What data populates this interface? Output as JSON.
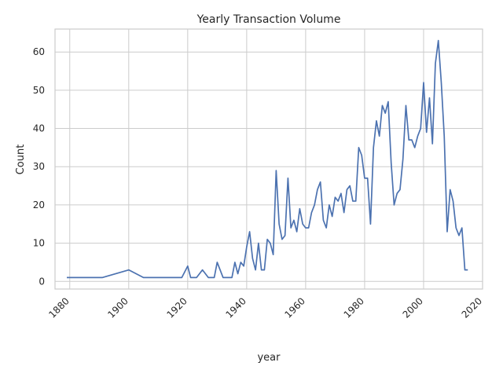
{
  "chart_data": {
    "type": "line",
    "title": "Yearly Transaction Volume",
    "xlabel": "year",
    "ylabel": "Count",
    "xlim": [
      1875,
      2020
    ],
    "ylim": [
      -2,
      66
    ],
    "xticks": [
      1880,
      1900,
      1920,
      1940,
      1960,
      1980,
      2000,
      2020
    ],
    "yticks": [
      0,
      10,
      20,
      30,
      40,
      50,
      60
    ],
    "grid": true,
    "legend": "none",
    "line_color": "#4c72b0",
    "grid_color": "#cccccc",
    "series": [
      {
        "x": [
          1879,
          1891,
          1900,
          1905,
          1918,
          1920,
          1921,
          1923,
          1925,
          1927,
          1929,
          1930,
          1932,
          1935,
          1936,
          1937,
          1938,
          1939,
          1940,
          1941,
          1942,
          1943,
          1944,
          1945,
          1946,
          1947,
          1948,
          1949,
          1950,
          1951,
          1952,
          1953,
          1954,
          1955,
          1956,
          1957,
          1958,
          1959,
          1960,
          1961,
          1962,
          1963,
          1964,
          1965,
          1966,
          1967,
          1968,
          1969,
          1970,
          1971,
          1972,
          1973,
          1974,
          1975,
          1976,
          1977,
          1978,
          1979,
          1980,
          1981,
          1982,
          1983,
          1984,
          1985,
          1986,
          1987,
          1988,
          1989,
          1990,
          1991,
          1992,
          1993,
          1994,
          1995,
          1996,
          1997,
          1998,
          1999,
          2000,
          2001,
          2002,
          2003,
          2004,
          2005,
          2006,
          2007,
          2008,
          2009,
          2010,
          2011,
          2012,
          2013,
          2014,
          2015
        ],
        "values": [
          1,
          1,
          3,
          1,
          1,
          4,
          1,
          1,
          3,
          1,
          1,
          5,
          1,
          1,
          5,
          2,
          5,
          4,
          9,
          13,
          6,
          3,
          10,
          3,
          3,
          11,
          10,
          7,
          29,
          15,
          11,
          12,
          27,
          14,
          16,
          13,
          19,
          15,
          14,
          14,
          18,
          20,
          24,
          26,
          16,
          14,
          20,
          17,
          22,
          21,
          23,
          18,
          24,
          25,
          21,
          21,
          35,
          33,
          27,
          27,
          15,
          35,
          42,
          38,
          46,
          44,
          47,
          31,
          20,
          23,
          24,
          32,
          46,
          37,
          37,
          35,
          38,
          40,
          52,
          39,
          48,
          36,
          57,
          63,
          52,
          38,
          13,
          24,
          21,
          14,
          12,
          14,
          3,
          3
        ]
      }
    ]
  }
}
